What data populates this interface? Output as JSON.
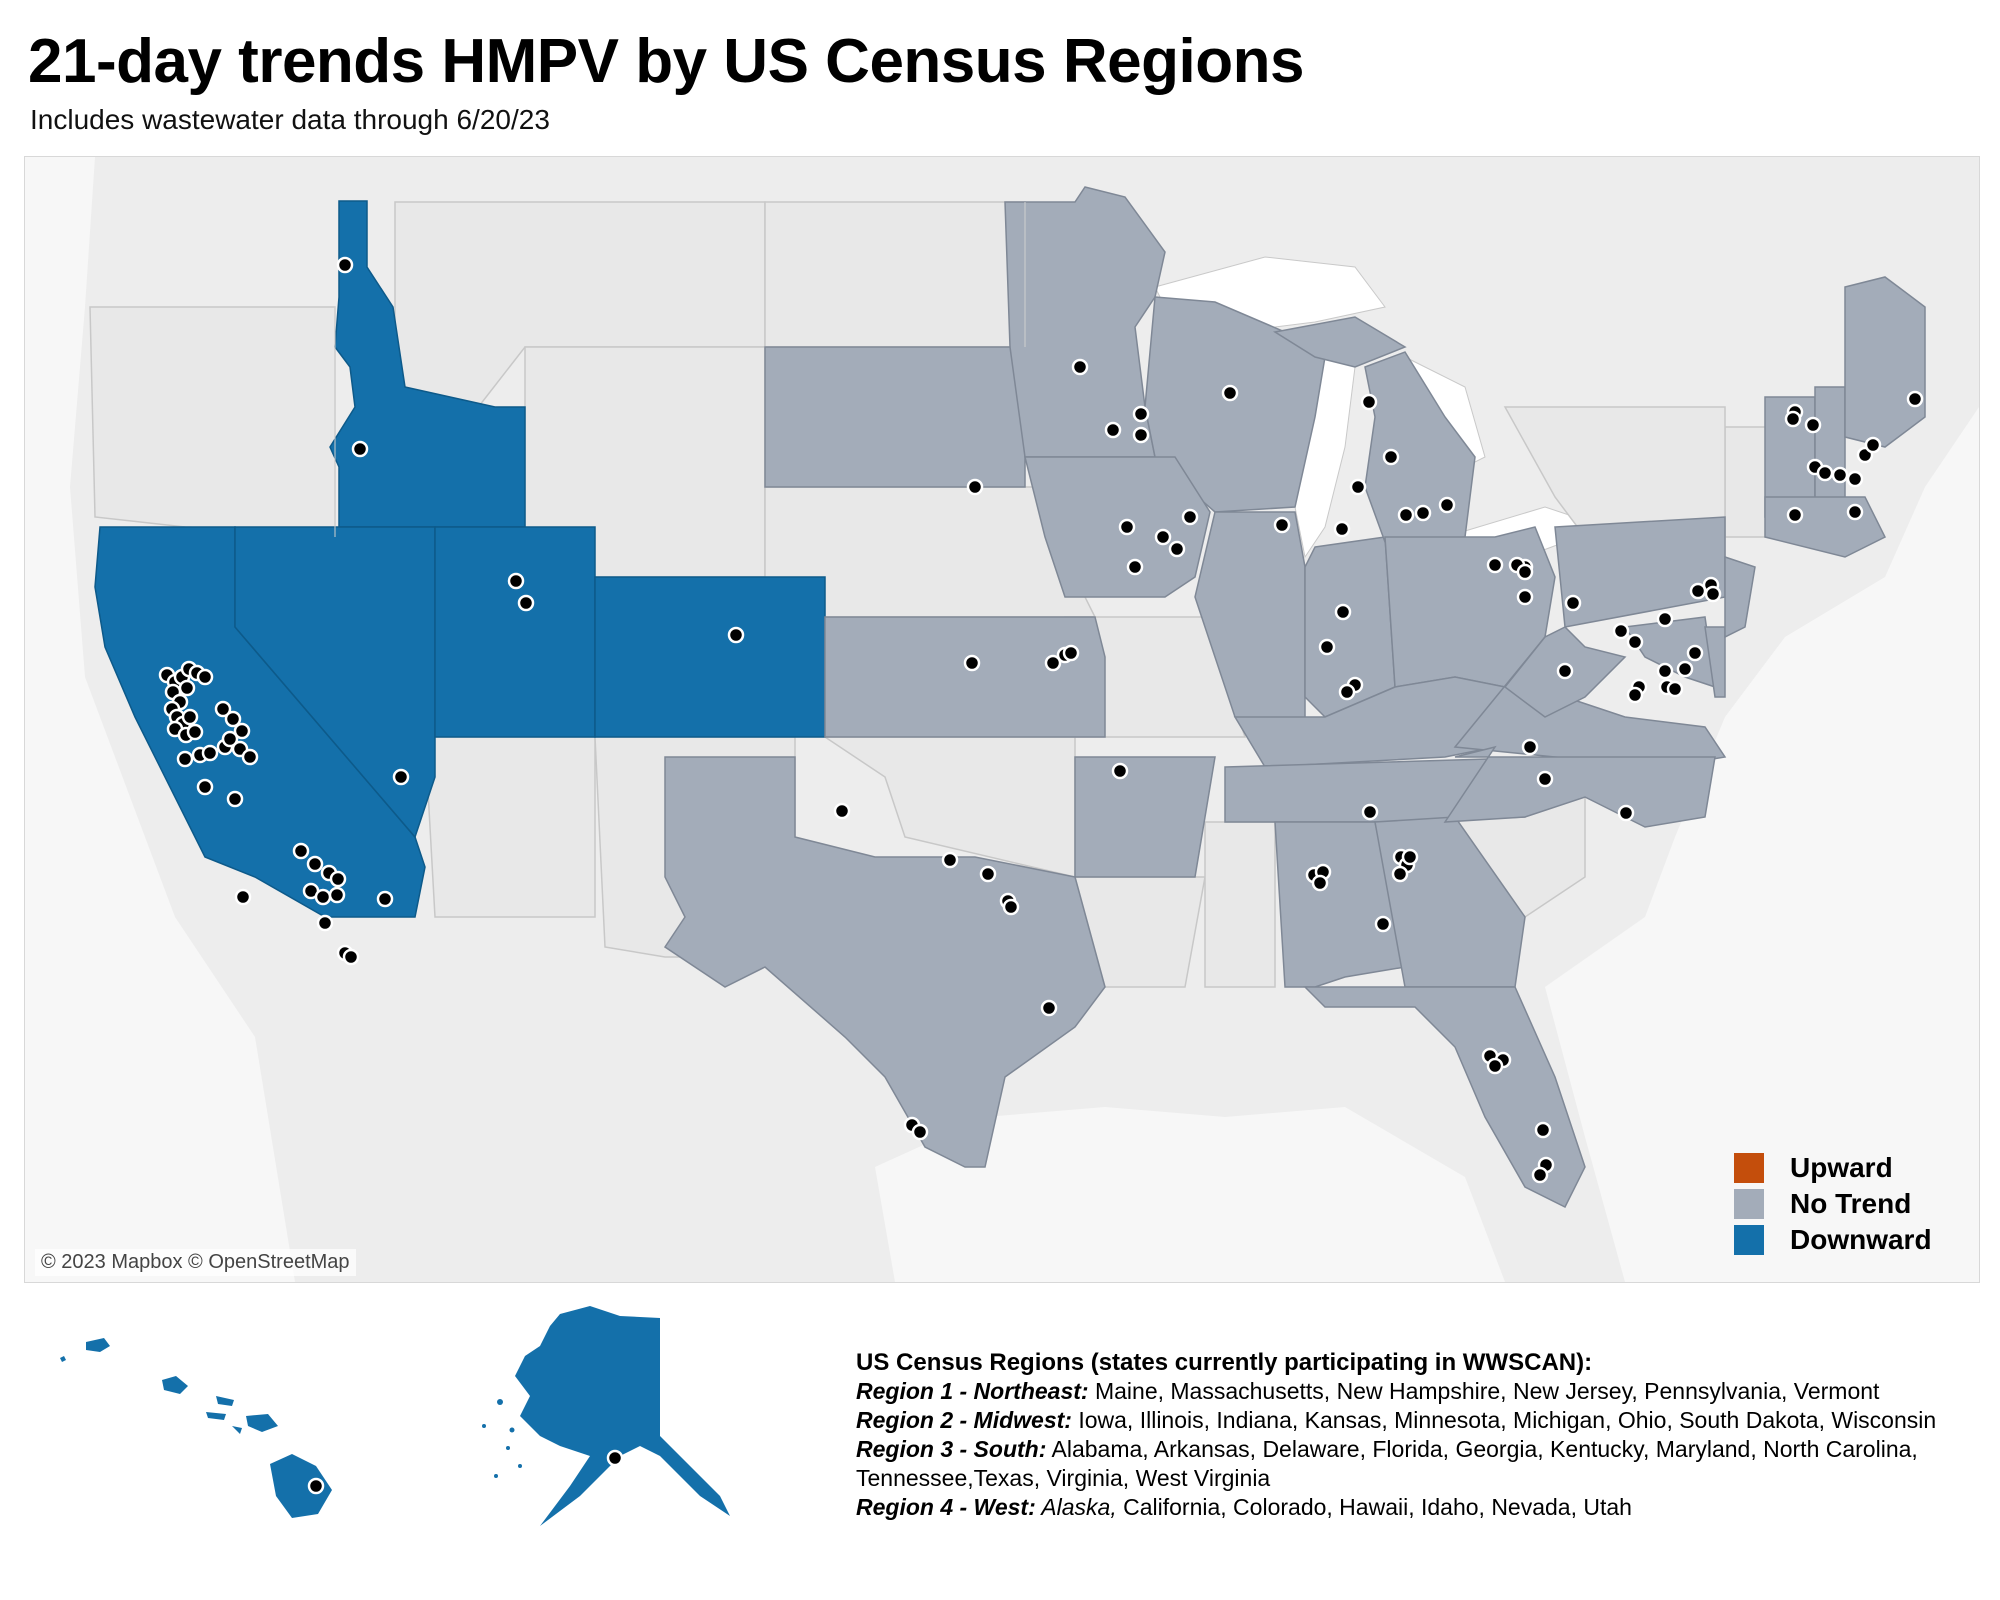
{
  "title": "21-day trends HMPV by US Census Regions",
  "subtitle": "Includes wastewater data through 6/20/23",
  "attribution": "© 2023 Mapbox © OpenStreetMap",
  "colors": {
    "upward": "#c44e0c",
    "no_trend": "#a3acb9",
    "downward": "#1470aa",
    "background_land": "#ececec",
    "site_dot": "#000000"
  },
  "legend": [
    {
      "label": "Upward",
      "color": "#c44e0c"
    },
    {
      "label": "No Trend",
      "color": "#a3acb9"
    },
    {
      "label": "Downward",
      "color": "#1470aa"
    }
  ],
  "state_trends": {
    "Downward": [
      "Idaho",
      "California",
      "Nevada",
      "Utah",
      "Colorado",
      "Alaska",
      "Hawaii"
    ],
    "No Trend": [
      "Maine",
      "Massachusetts",
      "New Hampshire",
      "New Jersey",
      "Pennsylvania",
      "Vermont",
      "Iowa",
      "Illinois",
      "Indiana",
      "Kansas",
      "Minnesota",
      "Michigan",
      "Ohio",
      "South Dakota",
      "Wisconsin",
      "Alabama",
      "Arkansas",
      "Delaware",
      "Florida",
      "Georgia",
      "Kentucky",
      "Maryland",
      "North Carolina",
      "Tennessee",
      "Texas",
      "Virginia",
      "West Virginia"
    ]
  },
  "regions_panel": {
    "heading": "US Census Regions (states currently participating in WWSCAN):",
    "region1_name": "Region 1 - Northeast:",
    "region1_states": " Maine, Massachusetts, New Hampshire, New Jersey, Pennsylvania, Vermont",
    "region2_name": "Region 2 - Midwest:",
    "region2_states": " Iowa, Illinois, Indiana, Kansas, Minnesota, Michigan, Ohio, South Dakota, Wisconsin",
    "region3_name": "Region 3 - South:",
    "region3_states": " Alabama, Arkansas, Delaware, Florida, Georgia, Kentucky, Maryland, North Carolina,",
    "region3_states_cont": "Tennessee,Texas, Virginia, West Virginia",
    "region4_name": "Region 4 - West:",
    "region4_alaska": " Alaska,",
    "region4_states": " California, Colorado, Hawaii, Idaho, Nevada, Utah"
  }
}
